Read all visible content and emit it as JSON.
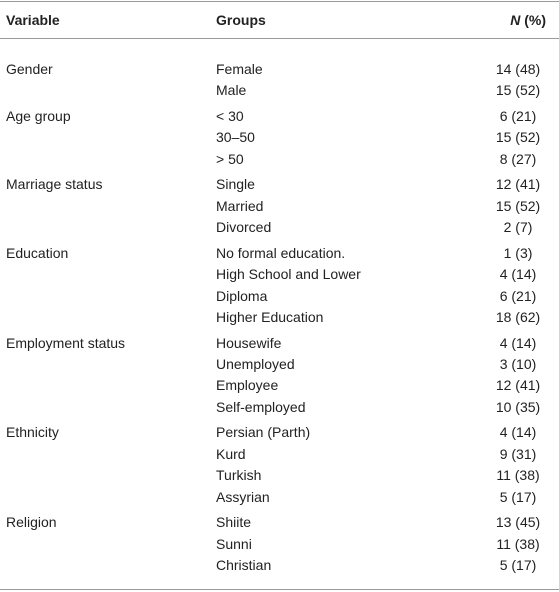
{
  "header": {
    "variable": "Variable",
    "groups": "Groups",
    "n_symbol": "N",
    "n_unit": "(%)"
  },
  "sections": [
    {
      "variable": "Gender",
      "rows": [
        {
          "group": "Female",
          "n": "14 (48)"
        },
        {
          "group": "Male",
          "n": "15 (52)"
        }
      ]
    },
    {
      "variable": "Age group",
      "rows": [
        {
          "group": "< 30",
          "n": "6 (21)"
        },
        {
          "group": "30–50",
          "n": "15 (52)"
        },
        {
          "group": "> 50",
          "n": "8 (27)"
        }
      ]
    },
    {
      "variable": "Marriage status",
      "rows": [
        {
          "group": "Single",
          "n": "12 (41)"
        },
        {
          "group": "Married",
          "n": "15 (52)"
        },
        {
          "group": "Divorced",
          "n": "2 (7)"
        }
      ]
    },
    {
      "variable": "Education",
      "rows": [
        {
          "group": "No formal education.",
          "n": "1 (3)"
        },
        {
          "group": "High School and Lower",
          "n": "4 (14)"
        },
        {
          "group": "Diploma",
          "n": "6 (21)"
        },
        {
          "group": "Higher Education",
          "n": "18 (62)"
        }
      ]
    },
    {
      "variable": "Employment status",
      "rows": [
        {
          "group": "Housewife",
          "n": "4 (14)"
        },
        {
          "group": "Unemployed",
          "n": "3 (10)"
        },
        {
          "group": "Employee",
          "n": "12 (41)"
        },
        {
          "group": "Self-employed",
          "n": "10 (35)"
        }
      ]
    },
    {
      "variable": "Ethnicity",
      "rows": [
        {
          "group": "Persian (Parth)",
          "n": "4 (14)"
        },
        {
          "group": "Kurd",
          "n": "9 (31)"
        },
        {
          "group": "Turkish",
          "n": "11 (38)"
        },
        {
          "group": "Assyrian",
          "n": "5 (17)"
        }
      ]
    },
    {
      "variable": "Religion",
      "rows": [
        {
          "group": "Shiite",
          "n": "13 (45)"
        },
        {
          "group": "Sunni",
          "n": "11 (38)"
        },
        {
          "group": "Christian",
          "n": "5 (17)"
        }
      ]
    }
  ]
}
